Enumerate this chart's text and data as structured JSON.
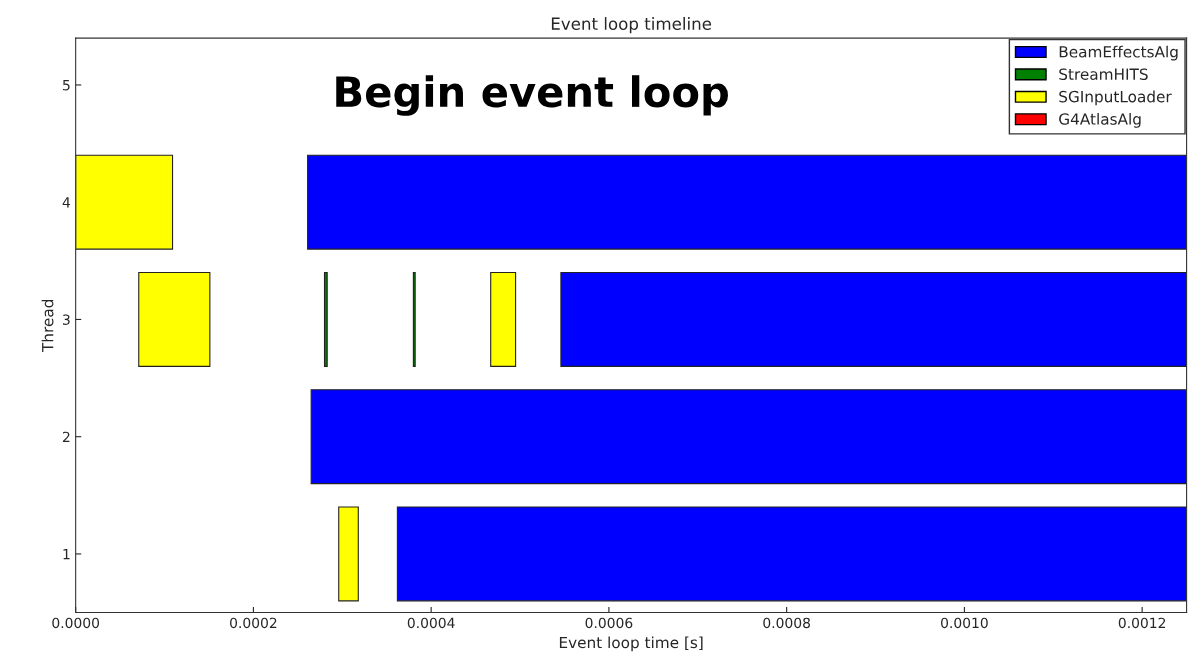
{
  "chart_data": {
    "type": "bar",
    "orientation": "horizontal",
    "title": "Event loop timeline",
    "xlabel": "Event loop time [s]",
    "ylabel": "Thread",
    "categories": [
      "5",
      "4",
      "3",
      "2",
      "1"
    ],
    "series": [
      {
        "name": "BeamEffectsAlg",
        "color": "#0000ff",
        "values": [
          null,
          0.000989,
          0.000704,
          0.000985,
          0.000888
        ],
        "base": [
          null,
          0.000261,
          0.000546,
          0.000265,
          0.000362
        ]
      },
      {
        "name": "StreamHITS",
        "color": "#008000",
        "values": [
          null,
          null,
          3e-06,
          null,
          null
        ],
        "base": [
          null,
          null,
          0.00028,
          null,
          null
        ]
      },
      {
        "color": "#008000",
        "values": [
          null,
          null,
          2e-06,
          null,
          null
        ],
        "base": [
          null,
          null,
          0.00038,
          null,
          null
        ]
      },
      {
        "name": "SGInputLoader",
        "color": "#ffff00",
        "values": [
          null,
          0.000109,
          8e-05,
          null,
          2.2e-05
        ],
        "base": [
          null,
          0.0,
          7.1e-05,
          null,
          0.000296
        ]
      },
      {
        "color": "#ffff00",
        "values": [
          null,
          null,
          2.8e-05,
          null,
          null
        ],
        "base": [
          null,
          null,
          0.000467,
          null,
          null
        ]
      },
      {
        "name": "G4AtlasAlg",
        "color": "#ff0000",
        "values": [
          null,
          null,
          null,
          null,
          null
        ],
        "base": [
          null,
          null,
          null,
          null,
          null
        ]
      }
    ],
    "xlim": [
      0,
      0.00125
    ],
    "xticks": [
      {
        "value": 0,
        "label": "0.0000"
      },
      {
        "value": 0.0002,
        "label": "0.0002"
      },
      {
        "value": 0.0004,
        "label": "0.0004"
      },
      {
        "value": 0.0006,
        "label": "0.0006"
      },
      {
        "value": 0.0008,
        "label": "0.0008"
      },
      {
        "value": 0.001,
        "label": "0.0010"
      },
      {
        "value": 0.0012,
        "label": "0.0012"
      }
    ],
    "annotations": [
      "Begin event loop"
    ],
    "legend": "top right",
    "grid": false
  }
}
